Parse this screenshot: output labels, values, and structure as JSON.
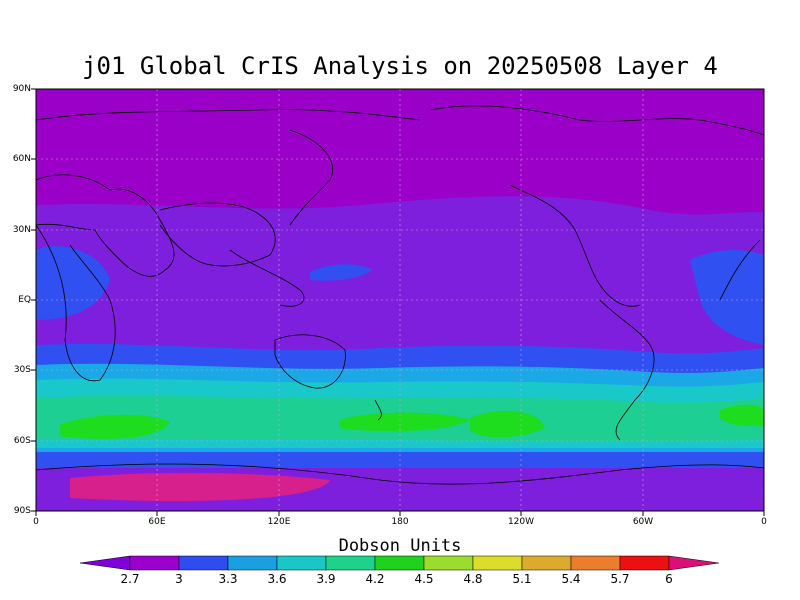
{
  "title": "j01 Global CrIS Analysis on 20250508 Layer 4",
  "units_label": "Dobson Units",
  "lat_ticks": [
    "90N",
    "60N",
    "30N",
    "EQ",
    "30S",
    "60S",
    "90S"
  ],
  "lon_ticks": [
    "0",
    "60E",
    "120E",
    "180",
    "120W",
    "60W",
    "0"
  ],
  "colorbar": {
    "labels": [
      "2.7",
      "3",
      "3.3",
      "3.6",
      "3.9",
      "4.2",
      "4.5",
      "4.8",
      "5.1",
      "5.4",
      "5.7",
      "6"
    ],
    "colors": [
      "#7f00d8",
      "#9c00cc",
      "#2e4cf0",
      "#1a9fe0",
      "#19c7c7",
      "#1ed28c",
      "#1ed21e",
      "#9bdc2d",
      "#dcdc2d",
      "#dcaa2d",
      "#ec7d2d",
      "#ec1010",
      "#dc0f78"
    ]
  },
  "field_colors": {
    "purple": "#9b00c8",
    "violet": "#7d1fdc",
    "blue": "#3050f2",
    "lightblue": "#1aa8e6",
    "cyan": "#19c8c8",
    "teal": "#1ecf94",
    "green": "#1edc1e",
    "magenta": "#d8208c"
  }
}
